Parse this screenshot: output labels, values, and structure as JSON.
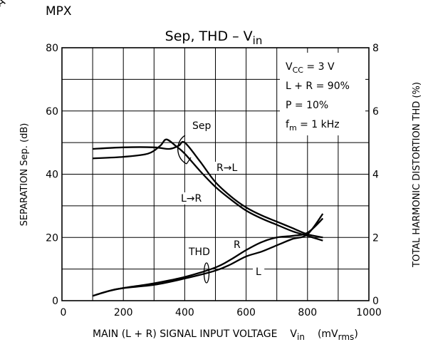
{
  "corner_mark": "A",
  "section_label": "MPX",
  "chart_data": {
    "type": "line",
    "title": "Sep, THD  –  V",
    "title_sub": "in",
    "xlabel": "MAIN (L + R) SIGNAL INPUT VOLTAGE",
    "xlabel_var": "V",
    "xlabel_var_sub": "in",
    "xlabel_unit": "(mV",
    "xlabel_unit_sub": "rms",
    "xlabel_unit_close": ")",
    "ylabel_left": "SEPARATION   Sep.  (dB)",
    "ylabel_right": "TOTAL HARMONIC DISTORTION   THD    (%)",
    "xlim": [
      0,
      1000
    ],
    "ylim_left": [
      0,
      80
    ],
    "ylim_right": [
      0,
      8
    ],
    "x_ticks": [
      "0",
      "200",
      "400",
      "600",
      "800",
      "1000"
    ],
    "y_left_ticks": [
      "0",
      "20",
      "40",
      "60",
      "80"
    ],
    "y_right_ticks": [
      "0",
      "2",
      "4",
      "6",
      "8"
    ],
    "grid": true,
    "conditions": [
      {
        "main": "V",
        "sub": "CC",
        "rest": " = 3 V"
      },
      {
        "main": "L + R = 90%",
        "sub": "",
        "rest": ""
      },
      {
        "main": "P = 10%",
        "sub": "",
        "rest": ""
      },
      {
        "main": "f",
        "sub": "m",
        "rest": " = 1 kHz"
      }
    ],
    "group_labels": {
      "sep": "Sep",
      "thd": "THD"
    },
    "series": [
      {
        "name": "R→L",
        "axis": "left",
        "x": [
          100,
          200,
          300,
          350,
          380,
          400,
          450,
          500,
          550,
          600,
          650,
          700,
          750,
          800,
          850
        ],
        "y": [
          48,
          48.5,
          48.5,
          48,
          49,
          50,
          44,
          37.5,
          33,
          29.5,
          27,
          25,
          23,
          21,
          20
        ]
      },
      {
        "name": "L→R",
        "axis": "left",
        "x": [
          100,
          200,
          280,
          320,
          340,
          370,
          400,
          450,
          500,
          550,
          600,
          650,
          700,
          750,
          800,
          850
        ],
        "y": [
          45,
          45.5,
          46.5,
          49,
          51,
          49,
          46.5,
          41,
          36,
          32,
          28.5,
          26,
          24,
          22,
          20.5,
          19
        ]
      },
      {
        "name": "R",
        "axis": "right",
        "x": [
          100,
          150,
          200,
          300,
          400,
          500,
          550,
          600,
          650,
          700,
          750,
          800,
          850
        ],
        "y": [
          0.15,
          0.3,
          0.4,
          0.55,
          0.75,
          1.05,
          1.3,
          1.6,
          1.85,
          2.0,
          2.05,
          2.15,
          2.6
        ]
      },
      {
        "name": "L",
        "axis": "right",
        "x": [
          100,
          150,
          200,
          300,
          400,
          500,
          550,
          600,
          650,
          700,
          750,
          800,
          850
        ],
        "y": [
          0.15,
          0.3,
          0.4,
          0.5,
          0.7,
          0.95,
          1.15,
          1.4,
          1.55,
          1.75,
          1.95,
          2.1,
          2.75
        ]
      }
    ]
  }
}
